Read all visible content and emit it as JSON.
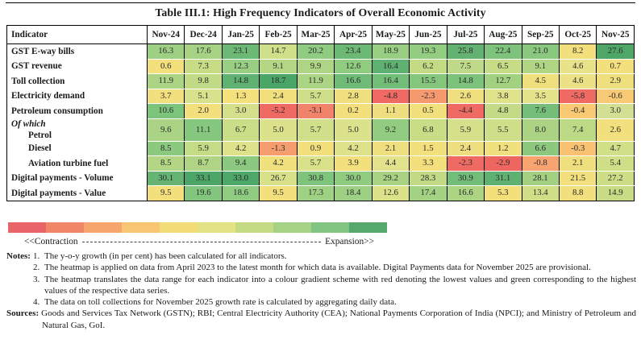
{
  "title": "Table III.1: High Frequency Indicators of Overall Economic Activity",
  "chart_data": {
    "type": "heatmap",
    "row_header": "Indicator",
    "columns": [
      "Nov-24",
      "Dec-24",
      "Jan-25",
      "Feb-25",
      "Mar-25",
      "Apr-25",
      "May-25",
      "Jun-25",
      "Jul-25",
      "Aug-25",
      "Sep-25",
      "Oct-25",
      "Nov-25"
    ],
    "unit": "y-o-y growth, per cent",
    "rows": [
      {
        "label": "GST E-way bills",
        "group_prefix": null,
        "indent": false,
        "values": [
          "16.3",
          "17.6",
          "23.1",
          "14.7",
          "20.2",
          "23.4",
          "18.9",
          "19.3",
          "25.8",
          "22.4",
          "21.0",
          "8.2",
          "27.6"
        ],
        "cell_colors": [
          "#9ed083",
          "#a6d284",
          "#6cb976",
          "#cfdf8a",
          "#8fcb80",
          "#6cb976",
          "#97ce81",
          "#93cd81",
          "#63b272",
          "#7dc37c",
          "#89c87e",
          "#f3e07c",
          "#4fa767"
        ]
      },
      {
        "label": "GST revenue",
        "group_prefix": null,
        "indent": false,
        "values": [
          "0.6",
          "7.3",
          "12.3",
          "9.1",
          "9.9",
          "12.6",
          "16.4",
          "6.2",
          "7.5",
          "6.5",
          "9.1",
          "4.6",
          "0.7"
        ],
        "cell_colors": [
          "#f3e07c",
          "#c8dc86",
          "#98cf82",
          "#b5d785",
          "#aed485",
          "#90cc80",
          "#5fb172",
          "#c4db85",
          "#bed988",
          "#c6dc86",
          "#b0d584",
          "#e8e28a",
          "#f3e07c"
        ]
      },
      {
        "label": "Toll collection",
        "group_prefix": null,
        "indent": false,
        "values": [
          "11.9",
          "9.8",
          "14.8",
          "18.7",
          "11.9",
          "16.6",
          "16.4",
          "15.5",
          "14.8",
          "12.7",
          "4.5",
          "4.6",
          "2.9"
        ],
        "cell_colors": [
          "#abd484",
          "#c1da85",
          "#60b272",
          "#4aa566",
          "#abd484",
          "#6fbb77",
          "#72bd78",
          "#85c67d",
          "#7cc27b",
          "#a2d182",
          "#f0df7d",
          "#ede188",
          "#f0df7d"
        ]
      },
      {
        "label": "Electricity demand",
        "group_prefix": null,
        "indent": false,
        "values": [
          "3.7",
          "5.1",
          "1.3",
          "2.4",
          "5.7",
          "2.8",
          "-4.8",
          "-2.3",
          "2.6",
          "3.8",
          "3.5",
          "-5.8",
          "-0.6"
        ],
        "cell_colors": [
          "#f2df7e",
          "#d8e18c",
          "#f4e07c",
          "#f1df7d",
          "#cede89",
          "#f0df7e",
          "#ee6a62",
          "#f59a6e",
          "#f0df7e",
          "#e0e28c",
          "#e5e48d",
          "#ee6a62",
          "#f9ca75"
        ]
      },
      {
        "label": "Petroleum consumption",
        "group_prefix": null,
        "indent": false,
        "values": [
          "10.6",
          "2.0",
          "3.0",
          "-5.2",
          "-3.1",
          "0.2",
          "1.1",
          "0.5",
          "-4.4",
          "4.8",
          "7.6",
          "-0.4",
          "3.0"
        ],
        "cell_colors": [
          "#7cc37b",
          "#f3e07c",
          "#d5e08d",
          "#ee6a62",
          "#f2836b",
          "#f3e07c",
          "#eede7f",
          "#f2e07d",
          "#ee6a62",
          "#c3da86",
          "#74be79",
          "#f9c974",
          "#d3e094"
        ]
      },
      {
        "label": "Petrol",
        "group_prefix": "Of which",
        "indent": true,
        "values": [
          "9.6",
          "11.1",
          "6.7",
          "5.0",
          "5.7",
          "5.0",
          "9.2",
          "6.8",
          "5.9",
          "5.5",
          "8.0",
          "7.4",
          "2.6"
        ],
        "cell_colors": [
          "#aad385",
          "#85c77e",
          "#cade88",
          "#dce28b",
          "#d0df89",
          "#dce28b",
          "#92cc81",
          "#c9dd87",
          "#d4e08a",
          "#cede89",
          "#abd383",
          "#bcd985",
          "#f2e07e"
        ]
      },
      {
        "label": "Diesel",
        "group_prefix": null,
        "indent": true,
        "values": [
          "8.5",
          "5.9",
          "4.2",
          "-1.3",
          "0.9",
          "4.2",
          "2.1",
          "1.5",
          "2.4",
          "1.2",
          "6.6",
          "-0.3",
          "4.7"
        ],
        "cell_colors": [
          "#8bc97f",
          "#c5dc86",
          "#dee28a",
          "#f59d6f",
          "#f3e07c",
          "#dee28a",
          "#f0df7e",
          "#f2e07d",
          "#eede80",
          "#f0e07e",
          "#8cc97f",
          "#f9c273",
          "#d0df88"
        ]
      },
      {
        "label": "Aviation turbine fuel",
        "group_prefix": null,
        "indent": true,
        "values": [
          "8.5",
          "8.7",
          "9.4",
          "4.2",
          "5.7",
          "3.9",
          "4.4",
          "3.3",
          "-2.3",
          "-2.9",
          "-0.8",
          "2.1",
          "5.4"
        ],
        "cell_colors": [
          "#b3d684",
          "#aed484",
          "#8bc980",
          "#f1e07e",
          "#d9e18b",
          "#f3e07c",
          "#e2e38c",
          "#f3e07c",
          "#ee6a62",
          "#ed665f",
          "#f8a471",
          "#f0df7f",
          "#cfdf87"
        ]
      },
      {
        "label": "Digital payments - Volume",
        "group_prefix": null,
        "indent": false,
        "values": [
          "30.1",
          "33.1",
          "33.0",
          "26.7",
          "30.8",
          "30.0",
          "29.2",
          "28.3",
          "30.9",
          "31.1",
          "28.1",
          "21.5",
          "27.2"
        ],
        "cell_colors": [
          "#65b473",
          "#4ba667",
          "#4da768",
          "#d8e189",
          "#7ec47c",
          "#90cc80",
          "#a9d383",
          "#c2da85",
          "#72bd79",
          "#5fb171",
          "#a3d181",
          "#f2df7d",
          "#cdde87"
        ]
      },
      {
        "label": "Digital payments - Value",
        "group_prefix": null,
        "indent": false,
        "values": [
          "9.5",
          "19.6",
          "18.6",
          "9.5",
          "17.3",
          "18.4",
          "12.6",
          "17.4",
          "16.6",
          "5.3",
          "13.4",
          "8.8",
          "14.9"
        ],
        "cell_colors": [
          "#f3e07c",
          "#82c67e",
          "#8fcb80",
          "#f3e07c",
          "#9ed183",
          "#9dd082",
          "#dce28a",
          "#a3d283",
          "#abd483",
          "#f4e07b",
          "#d0de87",
          "#f2df7d",
          "#c8dc86"
        ]
      }
    ],
    "legend": {
      "low_label": "<<Contraction",
      "high_label": "Expansion>>",
      "gradient_colors": [
        "#e9656a",
        "#ef8768",
        "#f6a66c",
        "#f8c673",
        "#f2dc78",
        "#e3e385",
        "#c4db84",
        "#a5d284",
        "#82c583",
        "#55a96c"
      ],
      "low_color": "#e9656a",
      "high_color": "#55a96c"
    }
  },
  "notes": {
    "label": "Notes:",
    "items": [
      {
        "num": "1.",
        "text": "The y-o-y growth (in per cent) has been calculated for all indicators."
      },
      {
        "num": "2.",
        "text": "The heatmap is applied on data from April 2023 to the latest month for which data is available. Digital Payments data for November 2025 are provisional."
      },
      {
        "num": "3.",
        "text": "The heatmap translates the data range for each indicator into a colour gradient scheme with red denoting the lowest values and green corresponding to the highest values of the respective data series."
      },
      {
        "num": "4.",
        "text": "The data on toll collections for November 2025 growth rate is calculated by aggregating daily data."
      }
    ]
  },
  "sources": {
    "label": "Sources:",
    "text": "Goods and Services Tax Network (GSTN); RBI; Central Electricity Authority (CEA); National Payments Corporation of India (NPCI); and Ministry of Petroleum and Natural Gas, GoI."
  }
}
